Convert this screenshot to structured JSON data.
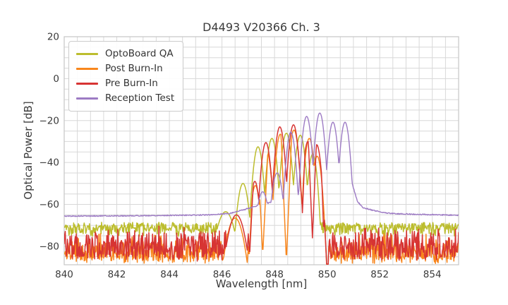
{
  "chart_data": {
    "type": "line",
    "title": "D4493 V20366 Ch. 3",
    "xlabel": "Wavelength [nm]",
    "ylabel": "Optical Power [dB]",
    "xlim": [
      840,
      855
    ],
    "ylim": [
      -88.8,
      20
    ],
    "xticks": [
      840,
      842,
      844,
      846,
      848,
      850,
      852,
      854
    ],
    "yticks": [
      20,
      0,
      -20,
      -40,
      -60,
      -80
    ],
    "grid": {
      "x_step": 0.5,
      "y_step": 5,
      "color": "#d8d8d8",
      "border_color": "#c6c6c6",
      "visible": true
    },
    "legend_position": "upper-left",
    "description": "Optical spectra (mode combs over noise floor); peaks = [center_nm, power_dB, curvature], noise = band outside gap, nulls = deep narrow dips",
    "series": [
      {
        "name": "OptoBoard QA",
        "color": "#bcbd2e",
        "seed": 7,
        "peaks": [
          [
            846.14,
            -63.5,
            80
          ],
          [
            846.8,
            -50,
            250
          ],
          [
            847.37,
            -32.5,
            350
          ],
          [
            847.9,
            -28.5,
            350
          ],
          [
            848.45,
            -26,
            350
          ],
          [
            848.98,
            -27,
            350
          ],
          [
            849.45,
            -36,
            400
          ]
        ],
        "noise": {
          "top": -69.5,
          "jitter": 2.0,
          "down": 5,
          "pow": 2.0,
          "gap": [
            845.9,
            849.68
          ]
        },
        "nulls": []
      },
      {
        "name": "Post Burn-In",
        "color": "#f8861c",
        "seed": 11,
        "peaks": [
          [
            846.5,
            -66.5,
            100
          ],
          [
            847.27,
            -51,
            400
          ],
          [
            847.69,
            -34,
            380
          ],
          [
            848.22,
            -26.5,
            400
          ],
          [
            848.74,
            -24.5,
            400
          ],
          [
            849.32,
            -28.5,
            400
          ],
          [
            849.62,
            -37,
            400
          ]
        ],
        "noise": {
          "top": -74,
          "jitter": 3.0,
          "down": 13,
          "pow": 0.5,
          "gap": [
            846.25,
            850.05
          ]
        },
        "nulls": [
          [
            847.03,
            -86,
            250
          ],
          [
            847.55,
            -84,
            250
          ],
          [
            848.45,
            -87,
            300
          ],
          [
            849.05,
            -62,
            300
          ]
        ]
      },
      {
        "name": "Pre Burn-In",
        "color": "#d73433",
        "seed": 13,
        "peaks": [
          [
            846.55,
            -65,
            100
          ],
          [
            847.25,
            -49,
            400
          ],
          [
            847.67,
            -30.5,
            380
          ],
          [
            848.2,
            -23,
            400
          ],
          [
            848.72,
            -22,
            400
          ],
          [
            849.27,
            -30,
            400
          ],
          [
            849.6,
            -31.5,
            400
          ]
        ],
        "noise": {
          "top": -71,
          "jitter": 2.5,
          "down": 15,
          "pow": 0.6,
          "gap": [
            846.35,
            850.05
          ]
        },
        "nulls": [
          [
            847.05,
            -85,
            250
          ],
          [
            849.06,
            -64,
            300
          ],
          [
            849.44,
            -76,
            300
          ],
          [
            849.87,
            -74,
            350
          ]
        ]
      },
      {
        "name": "Reception Test",
        "color": "#9d7bc4",
        "seed": 5,
        "peaks": [
          [
            847.05,
            -62.5,
            100
          ],
          [
            847.55,
            -54,
            200
          ],
          [
            848.1,
            -45,
            260
          ],
          [
            848.62,
            -25.5,
            400
          ],
          [
            849.22,
            -18,
            400
          ],
          [
            849.72,
            -16.4,
            400
          ],
          [
            850.22,
            -20.8,
            400
          ],
          [
            850.68,
            -20.8,
            400
          ]
        ],
        "baseline": {
          "points": [
            [
              840,
              -65.6
            ],
            [
              843,
              -65.4
            ],
            [
              845.5,
              -65.0
            ],
            [
              846.3,
              -64.3
            ],
            [
              848,
              -58.5
            ],
            [
              850.6,
              -49
            ],
            [
              850.95,
              -50
            ],
            [
              851.15,
              -58.5
            ],
            [
              851.35,
              -61.5
            ],
            [
              851.8,
              -63
            ],
            [
              852.3,
              -64.2
            ],
            [
              853.2,
              -64.7
            ],
            [
              855,
              -65.2
            ]
          ],
          "jitter": 0.5
        },
        "nulls": []
      }
    ]
  }
}
